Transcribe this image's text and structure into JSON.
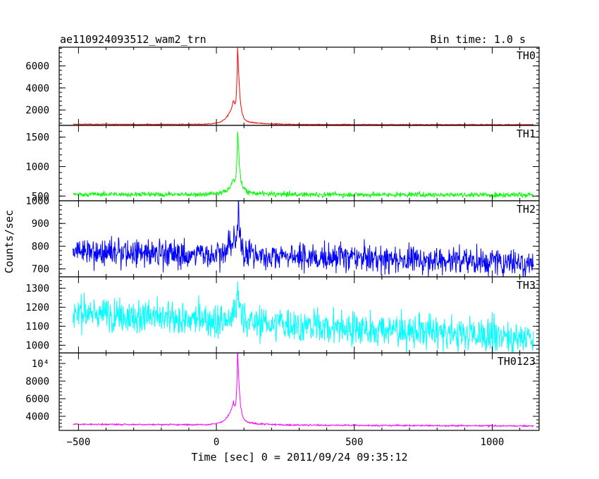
{
  "chart_data": {
    "type": "line",
    "title": "ae110924093512_wam2_trn",
    "bin_time": "Bin time: 1.0 s",
    "xlabel": "Time [sec] 0 = 2011/09/24 09:35:12",
    "ylabel": "Counts/sec",
    "xlim": [
      -570,
      1170
    ],
    "x_ticks": [
      -500,
      0,
      500,
      1000
    ],
    "x_data_range": [
      -520,
      1150
    ],
    "grid": false,
    "panels": [
      {
        "name": "TH0",
        "color": "#ff0000",
        "ylim": [
          600,
          7700
        ],
        "y_ticks": [
          {
            "value": 2000,
            "label": "2000"
          },
          {
            "value": 4000,
            "label": "4000"
          },
          {
            "value": 6000,
            "label": "6000"
          }
        ],
        "baseline": 700,
        "noise": 30,
        "trend_end": -40,
        "peak": {
          "x": 77,
          "value": 7500
        },
        "shoulder": {
          "x": 62,
          "value": 3300
        }
      },
      {
        "name": "TH1",
        "color": "#00ff00",
        "ylim": [
          420,
          1700
        ],
        "y_ticks": [
          {
            "value": 500,
            "label": "500"
          },
          {
            "value": 1000,
            "label": "1000"
          },
          {
            "value": 1500,
            "label": "1500"
          }
        ],
        "baseline": 530,
        "noise": 30,
        "trend_end": -10,
        "peak": {
          "x": 77,
          "value": 1620
        },
        "shoulder": {
          "x": 62,
          "value": 820
        }
      },
      {
        "name": "TH2",
        "color": "#0000ff",
        "ylim": [
          665,
          1000
        ],
        "y_ticks": [
          {
            "value": 700,
            "label": "700"
          },
          {
            "value": 800,
            "label": "800"
          },
          {
            "value": 900,
            "label": "900"
          },
          {
            "value": 1000,
            "label": "1000"
          }
        ],
        "baseline": 775,
        "noise": 45,
        "trend_end": -45,
        "peak": {
          "x": 80,
          "value": 985
        },
        "shoulder": {
          "x": 65,
          "value": 860
        }
      },
      {
        "name": "TH3",
        "color": "#00ffff",
        "ylim": [
          960,
          1360
        ],
        "y_ticks": [
          {
            "value": 1000,
            "label": "1000"
          },
          {
            "value": 1100,
            "label": "1100"
          },
          {
            "value": 1200,
            "label": "1200"
          },
          {
            "value": 1300,
            "label": "1300"
          }
        ],
        "baseline": 1170,
        "noise": 65,
        "trend_end": -130,
        "peak": {
          "x": 77,
          "value": 1350
        },
        "shoulder": {
          "x": 65,
          "value": 1230
        }
      },
      {
        "name": "TH0123",
        "color": "#ff00ff",
        "ylim": [
          2400,
          11200
        ],
        "y_ticks": [
          {
            "value": 4000,
            "label": "4000"
          },
          {
            "value": 6000,
            "label": "6000"
          },
          {
            "value": 8000,
            "label": "8000"
          },
          {
            "value": 10000,
            "label": "10⁴"
          }
        ],
        "baseline": 3100,
        "noise": 60,
        "trend_end": -200,
        "peak": {
          "x": 77,
          "value": 10900
        },
        "shoulder": {
          "x": 62,
          "value": 6200
        }
      }
    ]
  }
}
